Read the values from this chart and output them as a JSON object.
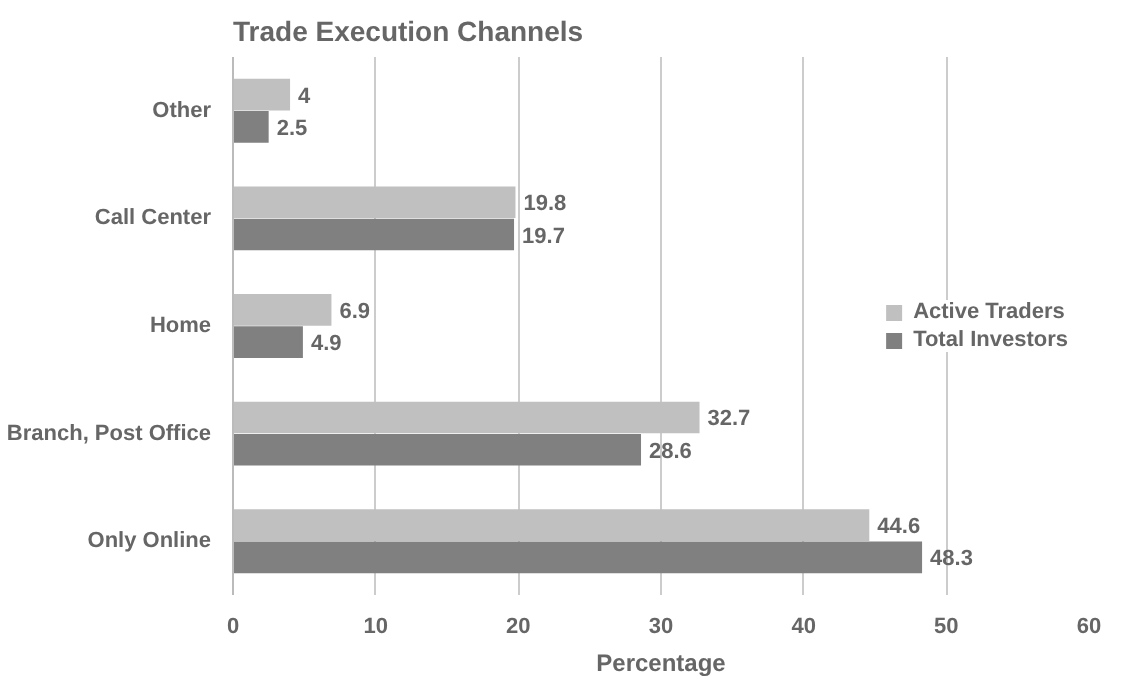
{
  "chart_data": {
    "type": "bar",
    "orientation": "horizontal",
    "title": "Trade Execution Channels",
    "xlabel": "Percentage",
    "categories": [
      "Other",
      "Call Center",
      "Home",
      "Branch, Post Office",
      "Only Online"
    ],
    "series": [
      {
        "name": "Active Traders",
        "color": "#c0c0c0",
        "values": [
          4,
          19.8,
          6.9,
          32.7,
          44.6
        ]
      },
      {
        "name": "Total Investors",
        "color": "#808080",
        "values": [
          2.5,
          19.7,
          4.9,
          28.6,
          48.3
        ]
      }
    ],
    "xlim": [
      0,
      60
    ],
    "xticks": [
      0,
      10,
      20,
      30,
      40,
      50,
      60
    ],
    "grid": "x",
    "legend": "right",
    "data_labels": true
  }
}
